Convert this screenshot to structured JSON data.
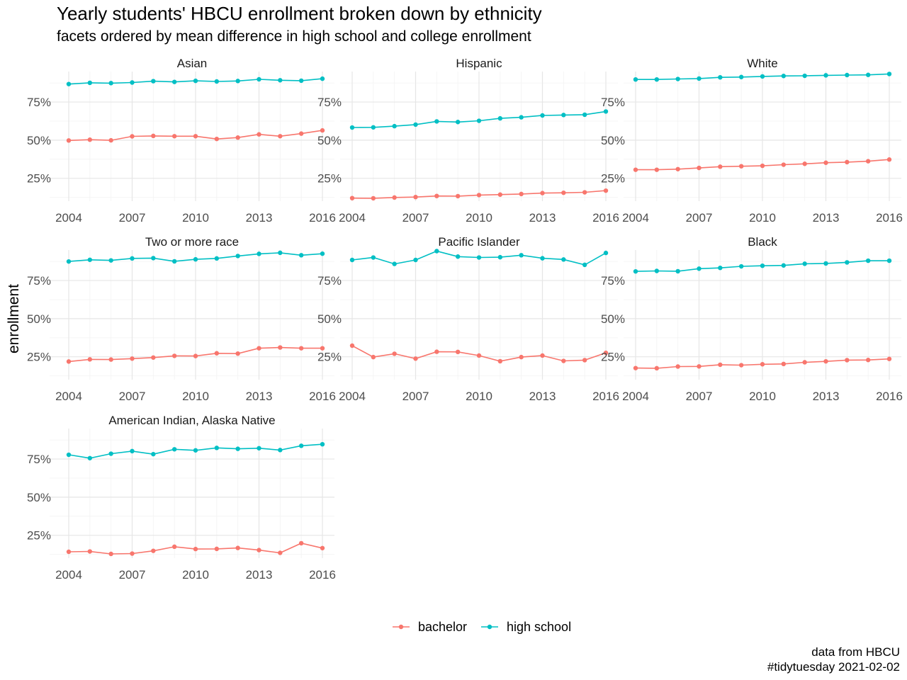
{
  "title": "Yearly students' HBCU enrollment broken down by ethnicity",
  "subtitle": "facets ordered by mean difference in high school and college enrollment",
  "caption": [
    "data from HBCU",
    "#tidytuesday 2021-02-02"
  ],
  "colors": {
    "bachelor": "#F8766D",
    "high school": "#00BFC4",
    "grid_major": "#e6e6e6",
    "grid_minor": "#f3f3f3",
    "axis_text": "#4d4d4d"
  },
  "chart_data": {
    "type": "line",
    "ylabel": "enrollment",
    "xlabel": "",
    "x": [
      2004,
      2005,
      2006,
      2007,
      2008,
      2009,
      2010,
      2011,
      2012,
      2013,
      2014,
      2015,
      2016
    ],
    "x_ticks": [
      "2004",
      "2007",
      "2010",
      "2013",
      "2016"
    ],
    "y_tick_values": [
      25,
      50,
      75
    ],
    "y_tick_labels": [
      "25%",
      "50%",
      "75%"
    ],
    "ylim": [
      10,
      95
    ],
    "grid": true,
    "legend": {
      "position": "bottom",
      "entries": [
        "bachelor",
        "high school"
      ]
    },
    "facets": [
      {
        "name": "Asian",
        "series": [
          {
            "name": "bachelor",
            "values": [
              49.8,
              50.3,
              49.9,
              52.5,
              52.8,
              52.6,
              52.6,
              50.8,
              51.7,
              53.8,
              52.6,
              54.3,
              56.4
            ]
          },
          {
            "name": "high school",
            "values": [
              86.8,
              87.6,
              87.4,
              87.8,
              88.7,
              88.2,
              88.9,
              88.5,
              88.8,
              89.9,
              89.3,
              89.0,
              90.3
            ]
          }
        ]
      },
      {
        "name": "Hispanic",
        "series": [
          {
            "name": "bachelor",
            "values": [
              12.0,
              11.9,
              12.4,
              12.7,
              13.4,
              13.3,
              14.0,
              14.3,
              14.7,
              15.3,
              15.5,
              15.8,
              16.9
            ]
          },
          {
            "name": "high school",
            "values": [
              58.3,
              58.4,
              59.2,
              60.2,
              62.3,
              61.9,
              62.7,
              64.3,
              65.0,
              66.2,
              66.5,
              66.7,
              68.8
            ]
          }
        ]
      },
      {
        "name": "White",
        "series": [
          {
            "name": "bachelor",
            "values": [
              30.6,
              30.6,
              31.0,
              31.8,
              32.6,
              32.9,
              33.2,
              33.9,
              34.5,
              35.2,
              35.6,
              36.2,
              37.3
            ]
          },
          {
            "name": "high school",
            "values": [
              89.8,
              89.8,
              90.1,
              90.4,
              91.2,
              91.4,
              91.8,
              92.1,
              92.2,
              92.5,
              92.7,
              92.8,
              93.4
            ]
          }
        ]
      },
      {
        "name": "Two or more race",
        "series": [
          {
            "name": "bachelor",
            "values": [
              21.9,
              23.3,
              23.2,
              23.8,
              24.5,
              25.6,
              25.5,
              27.3,
              27.1,
              30.6,
              31.1,
              30.6,
              30.6
            ]
          },
          {
            "name": "high school",
            "values": [
              87.5,
              88.6,
              88.2,
              89.5,
              89.7,
              87.6,
              88.9,
              89.5,
              91.1,
              92.5,
              93.2,
              91.6,
              92.6
            ]
          }
        ]
      },
      {
        "name": "Pacific Islander",
        "series": [
          {
            "name": "bachelor",
            "values": [
              32.3,
              24.8,
              27.0,
              23.8,
              28.3,
              28.2,
              25.8,
              22.1,
              24.8,
              25.8,
              22.3,
              22.8,
              27.6
            ]
          },
          {
            "name": "high school",
            "values": [
              88.5,
              90.1,
              85.9,
              88.5,
              94.3,
              90.7,
              90.1,
              90.3,
              91.6,
              89.6,
              88.8,
              85.3,
              93.1
            ]
          }
        ]
      },
      {
        "name": "Black",
        "series": [
          {
            "name": "bachelor",
            "values": [
              17.6,
              17.5,
              18.6,
              18.7,
              19.8,
              19.5,
              20.1,
              20.3,
              21.4,
              22.0,
              22.8,
              22.9,
              23.6
            ]
          },
          {
            "name": "high school",
            "values": [
              81.0,
              81.3,
              81.1,
              82.8,
              83.3,
              84.3,
              84.7,
              84.9,
              86.0,
              86.2,
              86.9,
              88.0,
              88.0
            ]
          }
        ]
      },
      {
        "name": "American Indian, Alaska Native",
        "series": [
          {
            "name": "bachelor",
            "values": [
              14.2,
              14.4,
              12.8,
              13.0,
              14.8,
              17.5,
              16.0,
              16.1,
              16.7,
              15.3,
              13.5,
              19.8,
              16.6
            ]
          },
          {
            "name": "high school",
            "values": [
              77.8,
              75.6,
              78.5,
              80.2,
              78.2,
              81.4,
              80.7,
              82.3,
              81.7,
              82.1,
              80.9,
              83.7,
              84.7
            ]
          }
        ]
      }
    ]
  }
}
